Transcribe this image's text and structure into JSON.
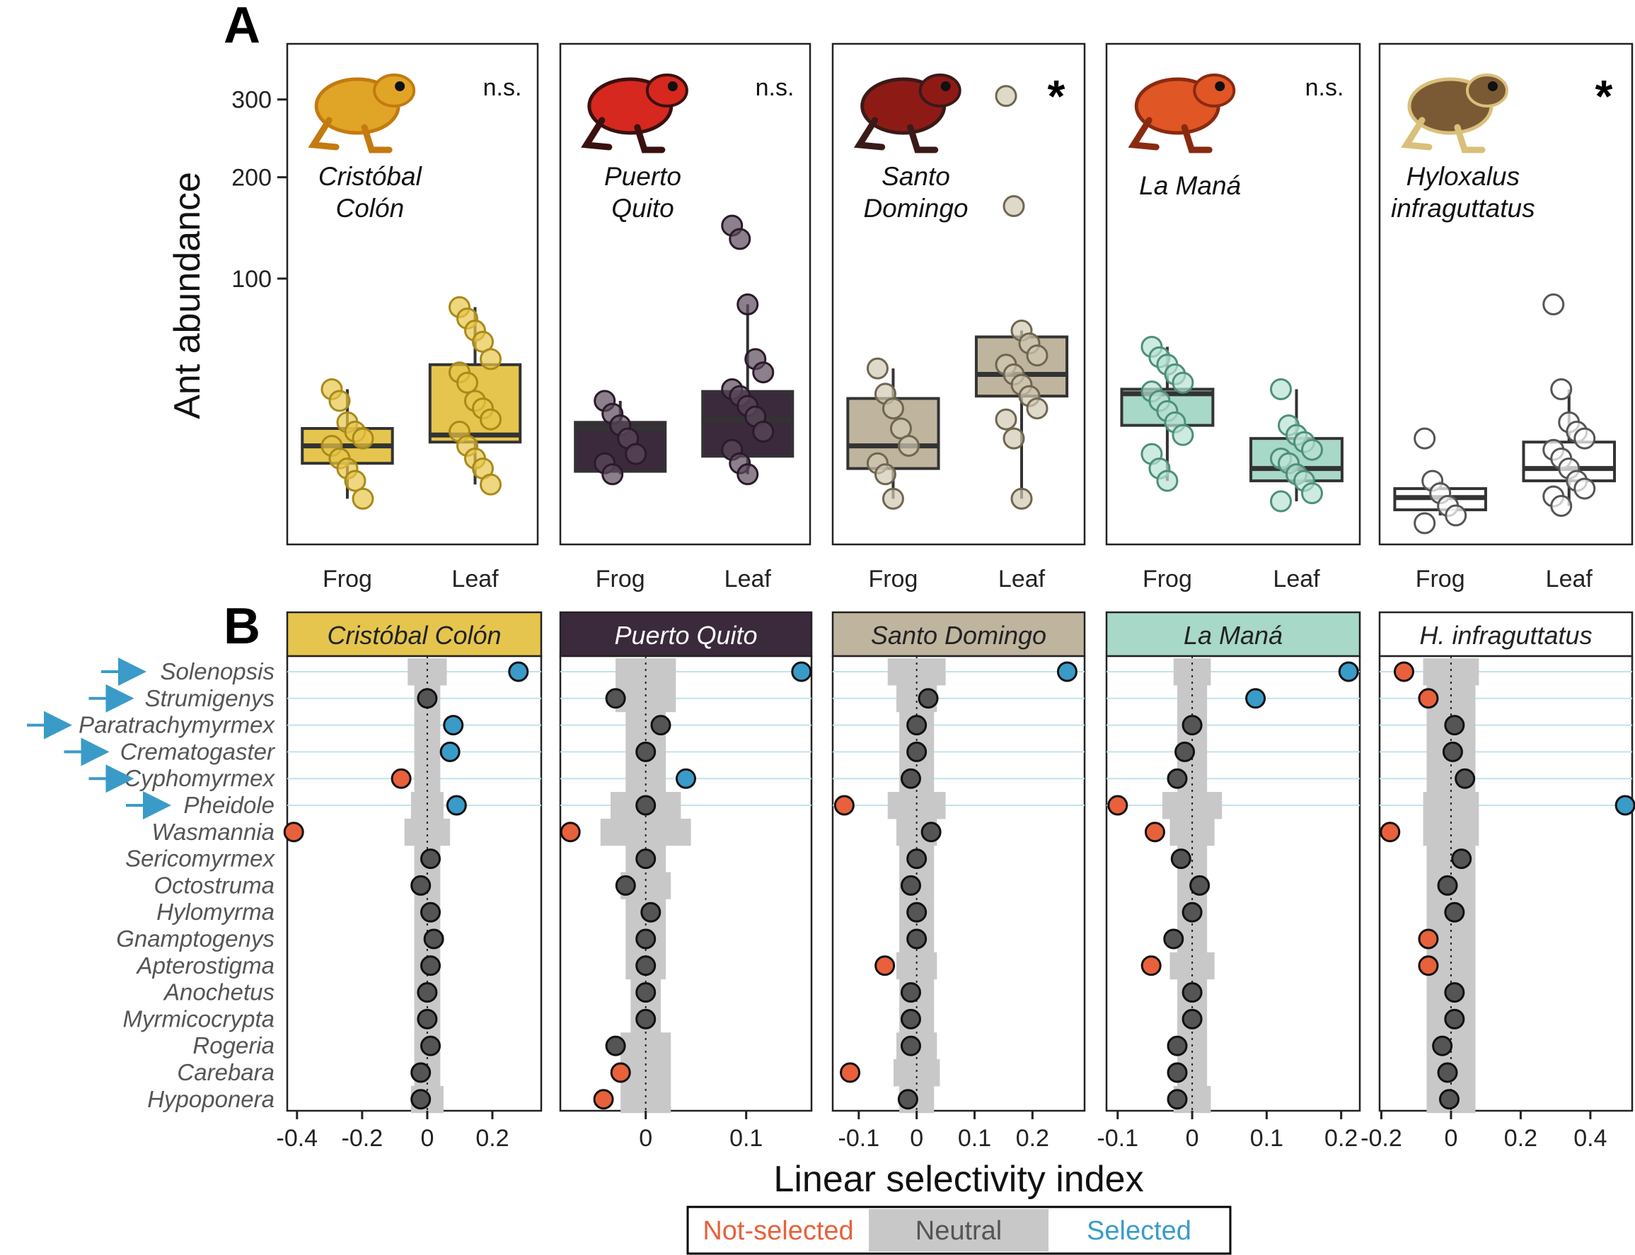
{
  "panel_labels": [
    "A",
    "B"
  ],
  "legend": [
    {
      "label": "Not-selected",
      "color": "#E8613A"
    },
    {
      "label": "Neutral",
      "color": "#555555"
    },
    {
      "label": "Selected",
      "color": "#3A9BC8"
    }
  ],
  "chart_data": [
    {
      "type": "box",
      "ylabel": "Ant abundance",
      "scale": "sqrt",
      "yticks": [
        100,
        200,
        300
      ],
      "categories": [
        "Frog",
        "Leaf"
      ],
      "panels": [
        {
          "title": [
            "Cristóbal",
            "Colón"
          ],
          "significance": "n.s.",
          "image": "frog-yellow-icon",
          "fill": "#E5C54D",
          "point_fill": "#E8C64A",
          "point_stroke": "#A88A1A",
          "boxes": [
            {
              "group": "Frog",
              "q1": 6,
              "median": 10,
              "q3": 15,
              "whisker_low": 1,
              "whisker_high": 30
            },
            {
              "group": "Leaf",
              "q1": 11,
              "median": 13,
              "q3": 42,
              "whisker_low": 2.5,
              "whisker_high": 78
            }
          ],
          "points": {
            "Frog": [
              30,
              25,
              17,
              14,
              12,
              10,
              7,
              5,
              3,
              1
            ],
            "Leaf": [
              78,
              70,
              62,
              55,
              45,
              38,
              33,
              25,
              22,
              18,
              14,
              10,
              7,
              5,
              2.5
            ]
          }
        },
        {
          "title": [
            "Puerto",
            "Quito"
          ],
          "significance": "n.s.",
          "image": "frog-red-black-icon",
          "fill": "#3B2A3B",
          "point_fill": "#5C4A5C",
          "point_stroke": "#2A1A2A",
          "boxes": [
            {
              "group": "Frog",
              "q1": 4.5,
              "median": 15,
              "q3": 17,
              "whisker_low": 4,
              "whisker_high": 25
            },
            {
              "group": "Leaf",
              "q1": 7.5,
              "median": 18,
              "q3": 29,
              "whisker_low": 4,
              "whisker_high": 80
            }
          ],
          "points": {
            "Frog": [
              25,
              20,
              16,
              12,
              8,
              6,
              4
            ],
            "Leaf": [
              148,
              135,
              80,
              45,
              38,
              30,
              27,
              23,
              19,
              14,
              9,
              6,
              4
            ]
          }
        },
        {
          "title": [
            "Santo",
            "Domingo"
          ],
          "significance": "*",
          "image": "frog-darkred-icon",
          "fill": "#BFB49E",
          "point_fill": "#D2C9B3",
          "point_stroke": "#6E6650",
          "boxes": [
            {
              "group": "Frog",
              "q1": 5,
              "median": 10,
              "q3": 26,
              "whisker_low": 1,
              "whisker_high": 40
            },
            {
              "group": "Leaf",
              "q1": 27,
              "median": 37,
              "q3": 58,
              "whisker_low": 1,
              "whisker_high": 62
            }
          ],
          "points": {
            "Frog": [
              40,
              28,
              22,
              15,
              10,
              6,
              4,
              1
            ],
            "Leaf": [
              305,
              168,
              62,
              54,
              47,
              42,
              37,
              32,
              27,
              22,
              18,
              12,
              1
            ]
          }
        },
        {
          "title": [
            "La Maná"
          ],
          "significance": "n.s.",
          "image": "frog-orange-icon",
          "fill": "#A7D8C8",
          "point_fill": "#B9E3D4",
          "point_stroke": "#4E8F7A",
          "boxes": [
            {
              "group": "Frog",
              "q1": 16,
              "median": 28,
              "q3": 30,
              "whisker_low": 3,
              "whisker_high": 52
            },
            {
              "group": "Leaf",
              "q1": 3,
              "median": 5,
              "q3": 12,
              "whisker_low": 0.8,
              "whisker_high": 30
            }
          ],
          "points": {
            "Frog": [
              52,
              46,
              42,
              37,
              33,
              29,
              25,
              21,
              17,
              13,
              8,
              5,
              3
            ],
            "Leaf": [
              30,
              16,
              13,
              11,
              9,
              7,
              6,
              4,
              3,
              1.5,
              0.8
            ]
          }
        },
        {
          "title": [
            "Hyloxalus",
            "infraguttatus"
          ],
          "significance": "*",
          "image": "frog-brown-icon",
          "fill": "#FFFFFF",
          "point_fill": "#FFFFFF",
          "point_stroke": "#555555",
          "boxes": [
            {
              "group": "Frog",
              "q1": 0.3,
              "median": 1.1,
              "q3": 2,
              "whisker_low": 0.1,
              "whisker_high": 3
            },
            {
              "group": "Leaf",
              "q1": 3,
              "median": 5,
              "q3": 11,
              "whisker_low": 0.5,
              "whisker_high": 30
            }
          ],
          "points": {
            "Frog": [
              12,
              3,
              1.5,
              0.5,
              0.1,
              0
            ],
            "Leaf": [
              80,
              30,
              17,
              14,
              12,
              9,
              7,
              5,
              3,
              2,
              1.2,
              0.5
            ]
          }
        }
      ]
    },
    {
      "type": "dot",
      "xlabel": "Linear selectivity index",
      "genera": [
        "Solenopsis",
        "Strumigenys",
        "Paratrachymyrmex",
        "Crematogaster",
        "Cyphomyrmex",
        "Pheidole",
        "Wasmannia",
        "Sericomyrmex",
        "Octostruma",
        "Hylomyrma",
        "Gnamptogenys",
        "Apterostigma",
        "Anochetus",
        "Myrmicocrypta",
        "Rogeria",
        "Carebara",
        "Hypoponera"
      ],
      "highlighted_genera": [
        "Solenopsis",
        "Strumigenys",
        "Paratrachymyrmex",
        "Crematogaster",
        "Cyphomyrmex",
        "Pheidole"
      ],
      "panels": [
        {
          "strip": "Cristóbal Colón",
          "strip_fill": "#E5C54D",
          "strip_text": "#222222",
          "xlim": [
            -0.43,
            0.35
          ],
          "xticks": [
            -0.4,
            -0.2,
            0,
            0.2
          ],
          "tick_labels": [
            "-0.4",
            "-0.2",
            "0",
            "0.2"
          ],
          "values": [
            0.28,
            0,
            0.08,
            0.07,
            -0.08,
            0.09,
            -0.41,
            0.01,
            -0.02,
            0.01,
            0.02,
            0.01,
            0,
            0,
            0.01,
            -0.02,
            -0.02
          ],
          "status": [
            "Selected",
            "Neutral",
            "Selected",
            "Selected",
            "Not-selected",
            "Selected",
            "Not-selected",
            "Neutral",
            "Neutral",
            "Neutral",
            "Neutral",
            "Neutral",
            "Neutral",
            "Neutral",
            "Neutral",
            "Neutral",
            "Neutral"
          ],
          "band": [
            0.06,
            0.04,
            0.04,
            0.04,
            0.04,
            0.05,
            0.07,
            0.04,
            0.04,
            0.04,
            0.04,
            0.04,
            0.04,
            0.04,
            0.04,
            0.04,
            0.05
          ]
        },
        {
          "strip": "Puerto Quito",
          "strip_fill": "#3B2A3B",
          "strip_text": "#FFFFFF",
          "xlim": [
            -0.085,
            0.165
          ],
          "xticks": [
            0,
            0.1
          ],
          "tick_labels": [
            "0",
            "0.1"
          ],
          "values": [
            0.155,
            -0.03,
            0.015,
            0,
            0.04,
            0,
            -0.075,
            0,
            -0.02,
            0.005,
            0,
            0,
            0,
            0,
            -0.03,
            -0.025,
            -0.042
          ],
          "status": [
            "Selected",
            "Neutral",
            "Neutral",
            "Neutral",
            "Selected",
            "Neutral",
            "Not-selected",
            "Neutral",
            "Neutral",
            "Neutral",
            "Neutral",
            "Neutral",
            "Neutral",
            "Neutral",
            "Neutral",
            "Not-selected",
            "Not-selected"
          ],
          "band": [
            0.03,
            0.03,
            0.02,
            0.02,
            0.02,
            0.035,
            0.045,
            0.02,
            0.025,
            0.02,
            0.02,
            0.02,
            0.015,
            0.015,
            0.025,
            0.025,
            0.025
          ]
        },
        {
          "strip": "Santo Domingo",
          "strip_fill": "#BFB49E",
          "strip_text": "#222222",
          "xlim": [
            -0.145,
            0.29
          ],
          "xticks": [
            -0.1,
            0,
            0.1,
            0.2
          ],
          "tick_labels": [
            "-0.1",
            "0",
            "0.1",
            "0.2"
          ],
          "values": [
            0.26,
            0.02,
            0,
            0,
            -0.01,
            -0.125,
            0.025,
            0,
            -0.01,
            0,
            0,
            -0.055,
            -0.01,
            -0.01,
            -0.01,
            -0.115,
            -0.015
          ],
          "status": [
            "Selected",
            "Neutral",
            "Neutral",
            "Neutral",
            "Neutral",
            "Not-selected",
            "Neutral",
            "Neutral",
            "Neutral",
            "Neutral",
            "Neutral",
            "Not-selected",
            "Neutral",
            "Neutral",
            "Neutral",
            "Not-selected",
            "Neutral"
          ],
          "band": [
            0.05,
            0.035,
            0.03,
            0.03,
            0.03,
            0.05,
            0.035,
            0.03,
            0.03,
            0.03,
            0.03,
            0.035,
            0.03,
            0.03,
            0.035,
            0.04,
            0.03
          ]
        },
        {
          "strip": "La Maná",
          "strip_fill": "#A7D8C8",
          "strip_text": "#222222",
          "xlim": [
            -0.115,
            0.225
          ],
          "xticks": [
            -0.1,
            0,
            0.1,
            0.2
          ],
          "tick_labels": [
            "-0.1",
            "0",
            "0.1",
            "0.2"
          ],
          "values": [
            0.21,
            0.085,
            0,
            -0.01,
            -0.02,
            -0.1,
            -0.05,
            -0.015,
            0.01,
            0,
            -0.025,
            -0.055,
            0,
            0,
            -0.02,
            -0.02,
            -0.02
          ],
          "status": [
            "Selected",
            "Selected",
            "Neutral",
            "Neutral",
            "Neutral",
            "Not-selected",
            "Not-selected",
            "Neutral",
            "Neutral",
            "Neutral",
            "Neutral",
            "Not-selected",
            "Neutral",
            "Neutral",
            "Neutral",
            "Neutral",
            "Neutral"
          ],
          "band": [
            0.025,
            0.02,
            0.02,
            0.02,
            0.02,
            0.04,
            0.03,
            0.02,
            0.02,
            0.02,
            0.02,
            0.03,
            0.02,
            0.02,
            0.02,
            0.02,
            0.025
          ]
        },
        {
          "strip": "H. infraguttatus",
          "strip_fill": "#FFFFFF",
          "strip_text": "#222222",
          "xlim": [
            -0.205,
            0.52
          ],
          "xticks": [
            -0.2,
            0,
            0.2,
            0.4
          ],
          "tick_labels": [
            "-0.2",
            "0",
            "0.2",
            "0.4"
          ],
          "values": [
            -0.135,
            -0.065,
            0.01,
            0.005,
            0.04,
            0.5,
            -0.175,
            0.03,
            -0.01,
            0.01,
            -0.065,
            -0.065,
            0.01,
            0.01,
            -0.025,
            -0.01,
            -0.005
          ],
          "status": [
            "Not-selected",
            "Not-selected",
            "Neutral",
            "Neutral",
            "Neutral",
            "Selected",
            "Not-selected",
            "Neutral",
            "Neutral",
            "Neutral",
            "Not-selected",
            "Not-selected",
            "Neutral",
            "Neutral",
            "Neutral",
            "Neutral",
            "Neutral"
          ],
          "band": [
            0.08,
            0.07,
            0.07,
            0.07,
            0.07,
            0.08,
            0.08,
            0.07,
            0.07,
            0.07,
            0.07,
            0.07,
            0.07,
            0.07,
            0.07,
            0.07,
            0.07
          ]
        }
      ]
    }
  ]
}
